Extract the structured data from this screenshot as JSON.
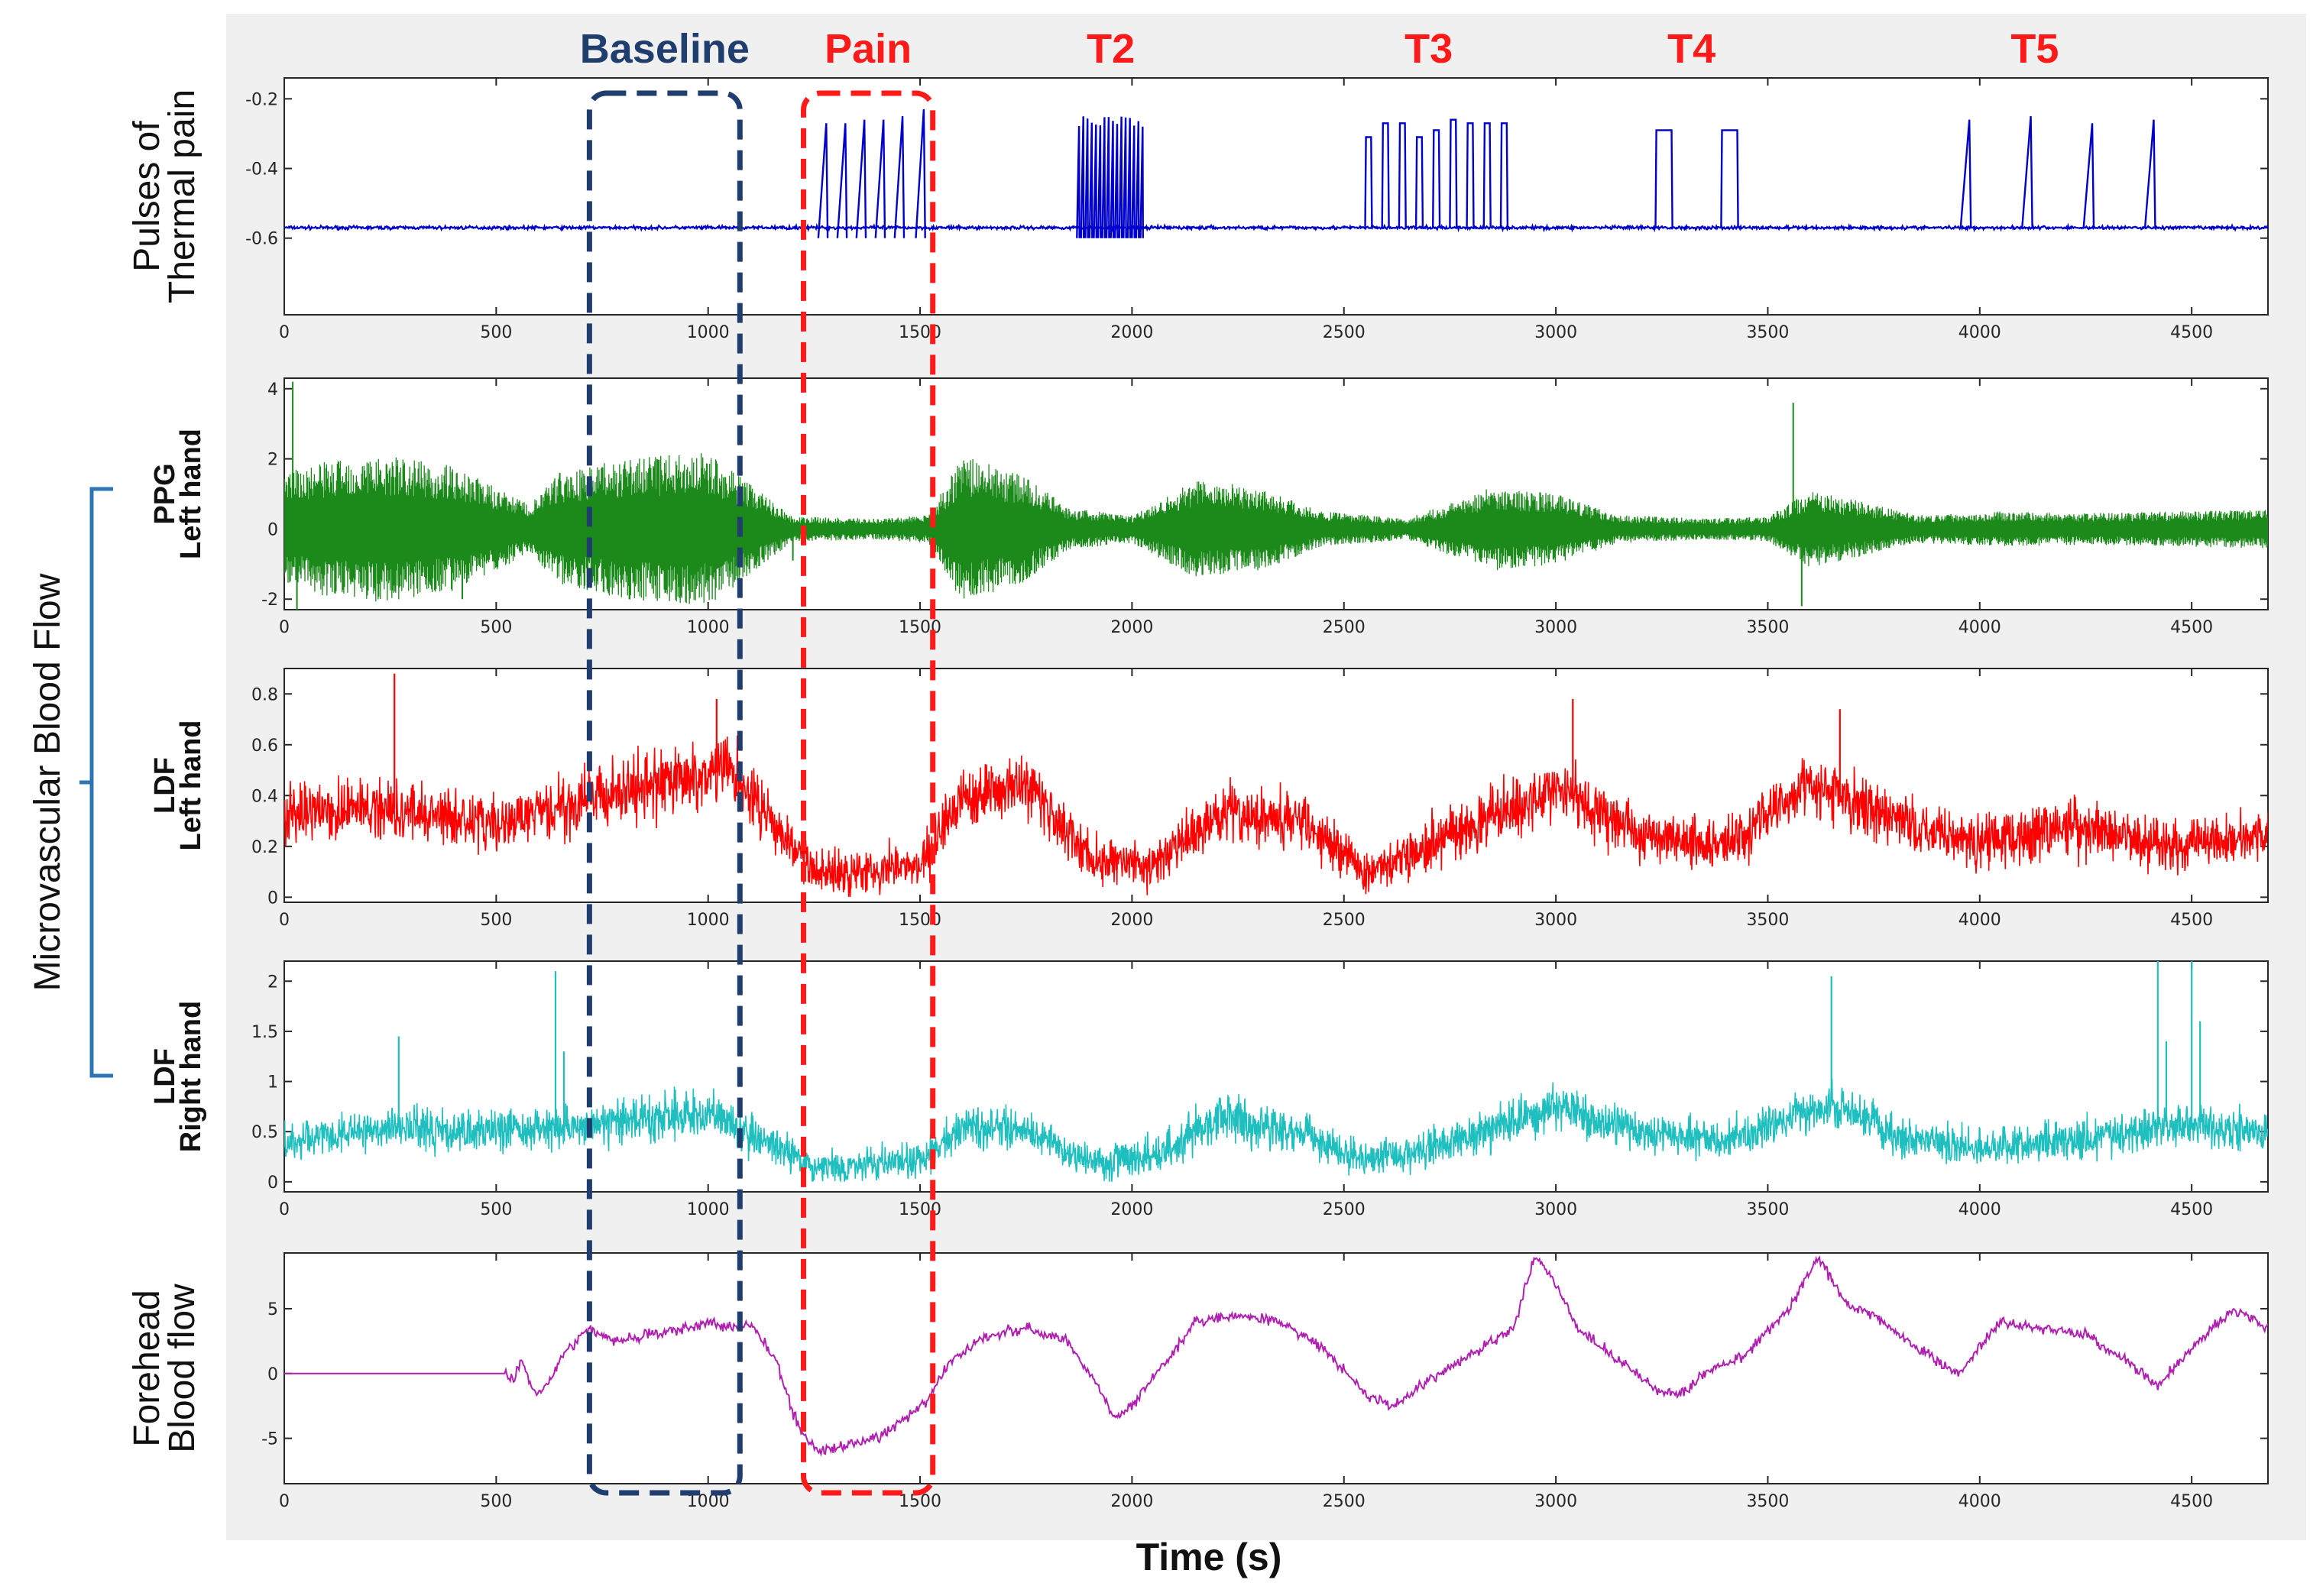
{
  "chart_data": {
    "type": "line",
    "xlabel": "Time (s)",
    "x_range": [
      0,
      4680
    ],
    "x_ticks": [
      0,
      500,
      1000,
      1500,
      2000,
      2500,
      3000,
      3500,
      4000,
      4500
    ],
    "group_label": "Microvascular Blood Flow",
    "segments": [
      {
        "label": "Baseline",
        "color": "#1f3e6e",
        "x_start": 720,
        "x_end": 1075,
        "boxed": true
      },
      {
        "label": "Pain",
        "color": "#ff1a1a",
        "x_start": 1225,
        "x_end": 1530,
        "boxed": true
      },
      {
        "label": "T2",
        "color": "#ff1a1a",
        "x_center": 1950
      },
      {
        "label": "T3",
        "color": "#ff1a1a",
        "x_center": 2700
      },
      {
        "label": "T4",
        "color": "#ff1a1a",
        "x_center": 3320
      },
      {
        "label": "T5",
        "color": "#ff1a1a",
        "x_center": 4130
      }
    ],
    "panels": [
      {
        "id": "thermal",
        "ylabel_lines": [
          "Pulses of",
          "Thermal pain"
        ],
        "ylim": [
          -0.82,
          -0.14
        ],
        "yticks": [
          -0.6,
          -0.4,
          -0.2
        ],
        "color": "#0000cc",
        "series": {
          "baseline": -0.57,
          "noise": 0.004,
          "pulse_groups": [
            {
              "times": [
                1260,
                1305,
                1350,
                1395,
                1440,
                1490
              ],
              "width": 22,
              "peaks": [
                -0.27,
                -0.27,
                -0.26,
                -0.26,
                -0.25,
                -0.23
              ],
              "kind": "spike",
              "dip": -0.6
            },
            {
              "times_from": 1870,
              "times_to": 2030,
              "count": 16,
              "width": 6,
              "peak": -0.25,
              "kind": "burst",
              "dip": -0.6
            },
            {
              "times": [
                2550,
                2590,
                2630,
                2670,
                2710,
                2750,
                2790,
                2830,
                2870
              ],
              "width": 16,
              "peaks": [
                -0.31,
                -0.27,
                -0.27,
                -0.31,
                -0.29,
                -0.26,
                -0.27,
                -0.27,
                -0.27
              ],
              "kind": "square"
            },
            {
              "times": [
                3235,
                3390
              ],
              "width": 40,
              "peaks": [
                -0.29,
                -0.29
              ],
              "kind": "square"
            },
            {
              "times": [
                3955,
                4100,
                4245,
                4390
              ],
              "width": 24,
              "peaks": [
                -0.26,
                -0.25,
                -0.27,
                -0.26
              ],
              "kind": "spike"
            }
          ]
        }
      },
      {
        "id": "ppg",
        "ylabel_lines": [
          "PPG",
          "Left hand"
        ],
        "ylim": [
          -2.3,
          4.3
        ],
        "yticks": [
          -2,
          0,
          2,
          4
        ],
        "color": "#1b8a1b",
        "series": {
          "amplitude_envelope": [
            [
              0,
              1.6
            ],
            [
              120,
              2.0
            ],
            [
              240,
              2.1
            ],
            [
              400,
              1.8
            ],
            [
              580,
              0.7
            ],
            [
              650,
              1.6
            ],
            [
              800,
              2.0
            ],
            [
              1000,
              2.2
            ],
            [
              1100,
              1.3
            ],
            [
              1200,
              0.35
            ],
            [
              1400,
              0.3
            ],
            [
              1520,
              0.4
            ],
            [
              1600,
              2.1
            ],
            [
              1750,
              1.5
            ],
            [
              1850,
              0.6
            ],
            [
              2000,
              0.4
            ],
            [
              2150,
              1.4
            ],
            [
              2300,
              1.2
            ],
            [
              2450,
              0.5
            ],
            [
              2650,
              0.3
            ],
            [
              2850,
              1.2
            ],
            [
              3000,
              1.0
            ],
            [
              3150,
              0.4
            ],
            [
              3350,
              0.3
            ],
            [
              3500,
              0.35
            ],
            [
              3600,
              1.1
            ],
            [
              3750,
              0.7
            ],
            [
              3850,
              0.4
            ],
            [
              4050,
              0.5
            ],
            [
              4250,
              0.45
            ],
            [
              4450,
              0.5
            ],
            [
              4680,
              0.55
            ]
          ],
          "spikes": [
            [
              20,
              4.2
            ],
            [
              30,
              -2.3
            ],
            [
              420,
              -2.0
            ],
            [
              650,
              1.6
            ],
            [
              1200,
              -0.9
            ],
            [
              3560,
              3.6
            ],
            [
              3580,
              -2.2
            ]
          ]
        }
      },
      {
        "id": "ldf_left",
        "ylabel_lines": [
          "LDF",
          "Left hand"
        ],
        "ylim": [
          -0.02,
          0.9
        ],
        "yticks": [
          0,
          0.2,
          0.4,
          0.6,
          0.8
        ],
        "color": "#ff0000",
        "series": {
          "mean_envelope": [
            [
              0,
              0.33
            ],
            [
              250,
              0.35
            ],
            [
              500,
              0.28
            ],
            [
              700,
              0.38
            ],
            [
              900,
              0.45
            ],
            [
              1050,
              0.5
            ],
            [
              1150,
              0.3
            ],
            [
              1250,
              0.1
            ],
            [
              1500,
              0.12
            ],
            [
              1600,
              0.4
            ],
            [
              1750,
              0.45
            ],
            [
              1900,
              0.15
            ],
            [
              2050,
              0.12
            ],
            [
              2200,
              0.33
            ],
            [
              2400,
              0.3
            ],
            [
              2550,
              0.1
            ],
            [
              2750,
              0.25
            ],
            [
              3000,
              0.42
            ],
            [
              3200,
              0.25
            ],
            [
              3400,
              0.2
            ],
            [
              3600,
              0.45
            ],
            [
              3800,
              0.3
            ],
            [
              4000,
              0.22
            ],
            [
              4200,
              0.28
            ],
            [
              4450,
              0.2
            ],
            [
              4680,
              0.25
            ]
          ],
          "noise": 0.22,
          "spikes": [
            [
              260,
              0.88
            ],
            [
              1020,
              0.78
            ],
            [
              3040,
              0.78
            ],
            [
              3670,
              0.74
            ]
          ]
        }
      },
      {
        "id": "ldf_right",
        "ylabel_lines": [
          "LDF",
          "Right hand"
        ],
        "ylim": [
          -0.1,
          2.2
        ],
        "yticks": [
          0,
          0.5,
          1,
          1.5,
          2
        ],
        "color": "#1fbfbf",
        "series": {
          "mean_envelope": [
            [
              0,
              0.4
            ],
            [
              250,
              0.55
            ],
            [
              500,
              0.5
            ],
            [
              700,
              0.55
            ],
            [
              1000,
              0.7
            ],
            [
              1150,
              0.35
            ],
            [
              1250,
              0.15
            ],
            [
              1500,
              0.2
            ],
            [
              1600,
              0.55
            ],
            [
              1750,
              0.5
            ],
            [
              1900,
              0.2
            ],
            [
              2050,
              0.25
            ],
            [
              2200,
              0.65
            ],
            [
              2400,
              0.5
            ],
            [
              2550,
              0.2
            ],
            [
              2750,
              0.4
            ],
            [
              3000,
              0.75
            ],
            [
              3200,
              0.5
            ],
            [
              3400,
              0.4
            ],
            [
              3650,
              0.8
            ],
            [
              3800,
              0.45
            ],
            [
              4000,
              0.35
            ],
            [
              4200,
              0.4
            ],
            [
              4450,
              0.55
            ],
            [
              4680,
              0.5
            ]
          ],
          "noise": 0.45,
          "spikes": [
            [
              270,
              1.45
            ],
            [
              640,
              2.1
            ],
            [
              660,
              1.3
            ],
            [
              3650,
              2.05
            ],
            [
              4420,
              2.2
            ],
            [
              4440,
              1.4
            ],
            [
              4500,
              2.2
            ],
            [
              4520,
              1.6
            ]
          ]
        }
      },
      {
        "id": "forehead",
        "ylabel_lines": [
          "Forehead",
          "Blood flow"
        ],
        "ylim": [
          -8.5,
          9.3
        ],
        "yticks": [
          -5,
          0,
          5
        ],
        "color": "#b020b0",
        "series": {
          "points": [
            [
              0,
              0
            ],
            [
              520,
              0
            ],
            [
              540,
              -0.5
            ],
            [
              560,
              1
            ],
            [
              590,
              -1.5
            ],
            [
              620,
              -1
            ],
            [
              660,
              1.5
            ],
            [
              720,
              3.5
            ],
            [
              780,
              2.5
            ],
            [
              850,
              3
            ],
            [
              950,
              3.5
            ],
            [
              1000,
              4
            ],
            [
              1050,
              3.5
            ],
            [
              1100,
              3.8
            ],
            [
              1160,
              1
            ],
            [
              1200,
              -3
            ],
            [
              1230,
              -5
            ],
            [
              1260,
              -6
            ],
            [
              1330,
              -5.5
            ],
            [
              1400,
              -5
            ],
            [
              1480,
              -3
            ],
            [
              1520,
              -2
            ],
            [
              1570,
              1
            ],
            [
              1650,
              2.8
            ],
            [
              1750,
              3.5
            ],
            [
              1850,
              2.5
            ],
            [
              1920,
              -1
            ],
            [
              1960,
              -3.5
            ],
            [
              2000,
              -2.5
            ],
            [
              2060,
              0
            ],
            [
              2150,
              4
            ],
            [
              2250,
              4.5
            ],
            [
              2350,
              4
            ],
            [
              2450,
              2
            ],
            [
              2550,
              -1.5
            ],
            [
              2620,
              -2.5
            ],
            [
              2700,
              -0.5
            ],
            [
              2800,
              1.5
            ],
            [
              2900,
              3.5
            ],
            [
              2950,
              9
            ],
            [
              3000,
              7
            ],
            [
              3050,
              3.5
            ],
            [
              3150,
              1
            ],
            [
              3250,
              -1.5
            ],
            [
              3300,
              -1.5
            ],
            [
              3350,
              0
            ],
            [
              3450,
              1.5
            ],
            [
              3550,
              5
            ],
            [
              3620,
              9
            ],
            [
              3680,
              5.5
            ],
            [
              3750,
              4.5
            ],
            [
              3850,
              2
            ],
            [
              3950,
              0
            ],
            [
              4050,
              4
            ],
            [
              4150,
              3.5
            ],
            [
              4250,
              3
            ],
            [
              4350,
              1
            ],
            [
              4420,
              -1
            ],
            [
              4500,
              2
            ],
            [
              4600,
              5
            ],
            [
              4680,
              3.5
            ]
          ],
          "noise": 0.35
        }
      }
    ]
  }
}
